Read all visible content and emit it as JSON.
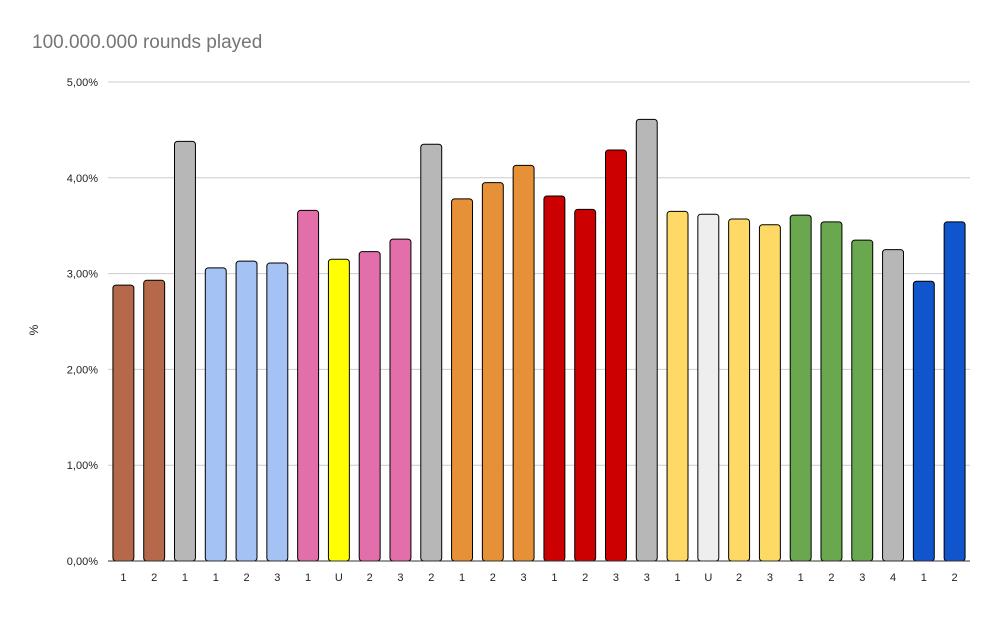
{
  "chart_data": {
    "type": "bar",
    "title": "100.000.000 rounds played",
    "xlabel": "",
    "ylabel": "%",
    "ylim": [
      0,
      5
    ],
    "yticks": [
      "0,00%",
      "1,00%",
      "2,00%",
      "3,00%",
      "4,00%",
      "5,00%"
    ],
    "grid": true,
    "legend": "none",
    "categories": [
      "1",
      "2",
      "1",
      "1",
      "2",
      "3",
      "1",
      "U",
      "2",
      "3",
      "2",
      "1",
      "2",
      "3",
      "1",
      "2",
      "3",
      "3",
      "1",
      "U",
      "2",
      "3",
      "1",
      "2",
      "3",
      "4",
      "1",
      "2"
    ],
    "values": [
      2.88,
      2.93,
      4.38,
      3.06,
      3.13,
      3.11,
      3.66,
      3.15,
      3.23,
      3.36,
      4.35,
      3.78,
      3.95,
      4.13,
      3.81,
      3.67,
      4.29,
      4.61,
      3.65,
      3.62,
      3.57,
      3.51,
      3.61,
      3.54,
      3.35,
      3.25,
      2.92,
      3.54
    ],
    "bar_colors": [
      "#b5694a",
      "#b5694a",
      "#b7b7b7",
      "#a4c2f4",
      "#a4c2f4",
      "#a4c2f4",
      "#e26faa",
      "#ffff00",
      "#e26faa",
      "#e26faa",
      "#b7b7b7",
      "#e69138",
      "#e69138",
      "#e69138",
      "#cc0000",
      "#cc0000",
      "#cc0000",
      "#b7b7b7",
      "#ffd966",
      "#eeeeee",
      "#ffd966",
      "#ffd966",
      "#6aa84f",
      "#6aa84f",
      "#6aa84f",
      "#b7b7b7",
      "#1155cc",
      "#1155cc"
    ]
  }
}
